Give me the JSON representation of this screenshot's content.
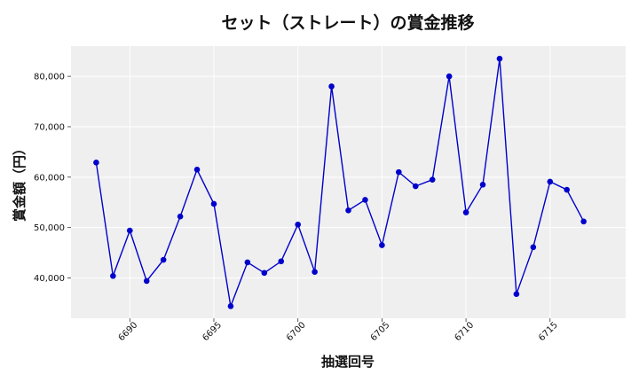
{
  "chart_data": {
    "type": "line",
    "title": "セット（ストレート）の賞金推移",
    "xlabel": "抽選回号",
    "ylabel": "賞金額（円）",
    "xlim": [
      6686.5,
      6719.5
    ],
    "ylim": [
      32000,
      86000
    ],
    "x_ticks": [
      6690,
      6695,
      6700,
      6705,
      6710,
      6715
    ],
    "y_ticks": [
      40000,
      50000,
      60000,
      70000,
      80000
    ],
    "y_tick_labels": [
      "40,000",
      "50,000",
      "60,000",
      "70,000",
      "80,000"
    ],
    "grid": true,
    "series": [
      {
        "color": "#0000cc",
        "x": [
          6688,
          6689,
          6690,
          6691,
          6692,
          6693,
          6694,
          6695,
          6696,
          6697,
          6698,
          6699,
          6700,
          6701,
          6702,
          6703,
          6704,
          6705,
          6706,
          6707,
          6708,
          6709,
          6710,
          6711,
          6712,
          6713,
          6714,
          6715,
          6716,
          6717
        ],
        "values": [
          62900,
          40400,
          49400,
          39400,
          43600,
          52200,
          61500,
          54700,
          34400,
          43100,
          41000,
          43300,
          50600,
          41200,
          78000,
          53400,
          55500,
          46500,
          61000,
          58200,
          59500,
          80000,
          53000,
          58500,
          83500,
          36800,
          46100,
          59100,
          57500,
          51200
        ]
      }
    ]
  }
}
